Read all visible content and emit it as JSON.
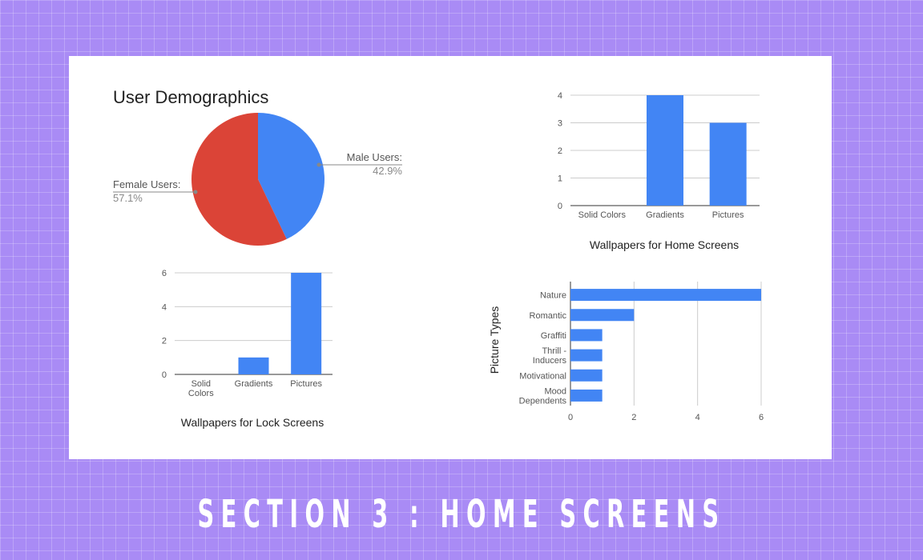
{
  "chart_data": [
    {
      "type": "pie",
      "title": "User Demographics",
      "slices": [
        {
          "label": "Male Users:",
          "value_text": "42.9%",
          "value": 42.9,
          "color": "#4285f4"
        },
        {
          "label": "Female Users:",
          "value_text": "57.1%",
          "value": 57.1,
          "color": "#db4437"
        }
      ]
    },
    {
      "type": "bar",
      "title": "Wallpapers for Home Screens",
      "categories": [
        "Solid Colors",
        "Gradients",
        "Pictures"
      ],
      "values": [
        0,
        4,
        3
      ],
      "yticks": [
        "0",
        "1",
        "2",
        "3",
        "4"
      ],
      "ylim": [
        0,
        4
      ],
      "color": "#4285f4",
      "grid": true
    },
    {
      "type": "bar",
      "title": "Wallpapers for Lock Screens",
      "categories": [
        "Solid Colors",
        "Gradients",
        "Pictures"
      ],
      "values": [
        0,
        1,
        6
      ],
      "yticks": [
        "0",
        "2",
        "4",
        "6"
      ],
      "ylim": [
        0,
        6
      ],
      "color": "#4285f4",
      "grid": true
    },
    {
      "type": "bar",
      "orientation": "horizontal",
      "ylabel": "Picture Types",
      "categories": [
        "Nature",
        "Romantic",
        "Graffiti",
        "Thrill - Inducers",
        "Motivational",
        "Mood Dependents"
      ],
      "values": [
        6,
        2,
        1,
        1,
        1,
        1
      ],
      "xticks": [
        "0",
        "2",
        "4",
        "6"
      ],
      "xlim": [
        0,
        6
      ],
      "color": "#4285f4",
      "grid": true
    }
  ],
  "footer": {
    "title": "SECTION 3 : HOME SCREENS"
  }
}
